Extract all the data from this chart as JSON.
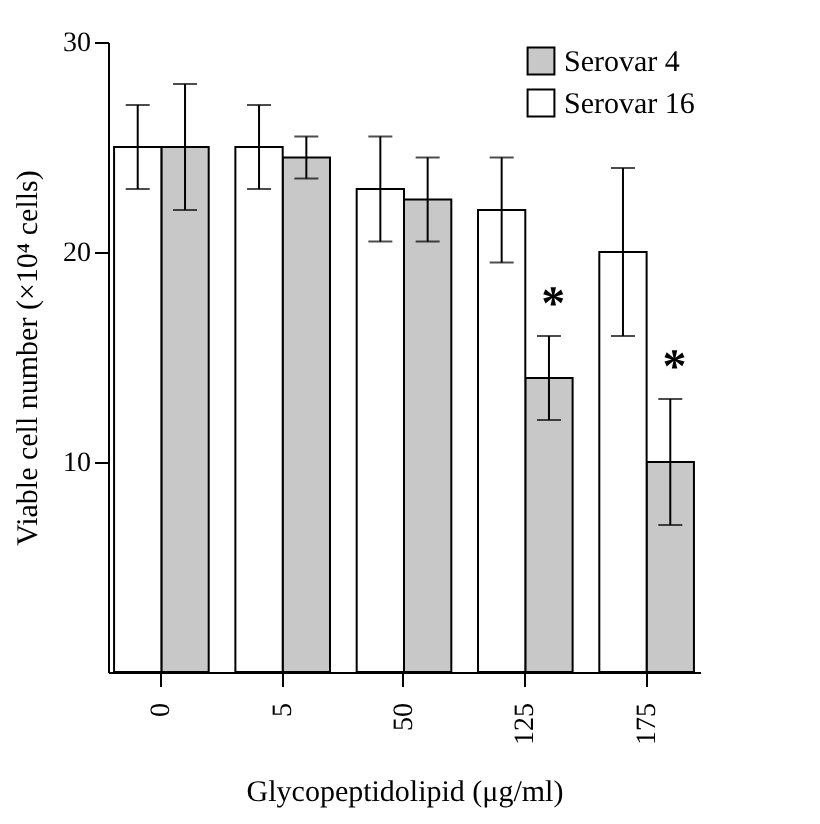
{
  "chart_data": {
    "type": "bar",
    "xlabel": "Glycopeptidolipid (μg/ml)",
    "ylabel": "Viable cell number (×10⁴ cells)",
    "categories": [
      "0",
      "5",
      "50",
      "125",
      "175"
    ],
    "series": [
      {
        "name": "Serovar 4",
        "color": "#c8c8c8",
        "values": [
          25,
          24.5,
          22.5,
          14,
          10
        ],
        "errors": [
          3,
          1,
          2,
          2,
          3
        ]
      },
      {
        "name": "Serovar 16",
        "color": "#ffffff",
        "values": [
          25,
          25,
          23,
          22,
          20
        ],
        "errors": [
          2,
          2,
          2.5,
          2.5,
          4
        ]
      }
    ],
    "ylim": [
      0,
      30
    ],
    "yticks": [
      10,
      20,
      30
    ],
    "grid": false,
    "legend": "top right",
    "annotations": [
      {
        "text": "*",
        "x": "125",
        "y": 17.5
      },
      {
        "text": "*",
        "x": "175",
        "y": 14.5
      }
    ]
  }
}
